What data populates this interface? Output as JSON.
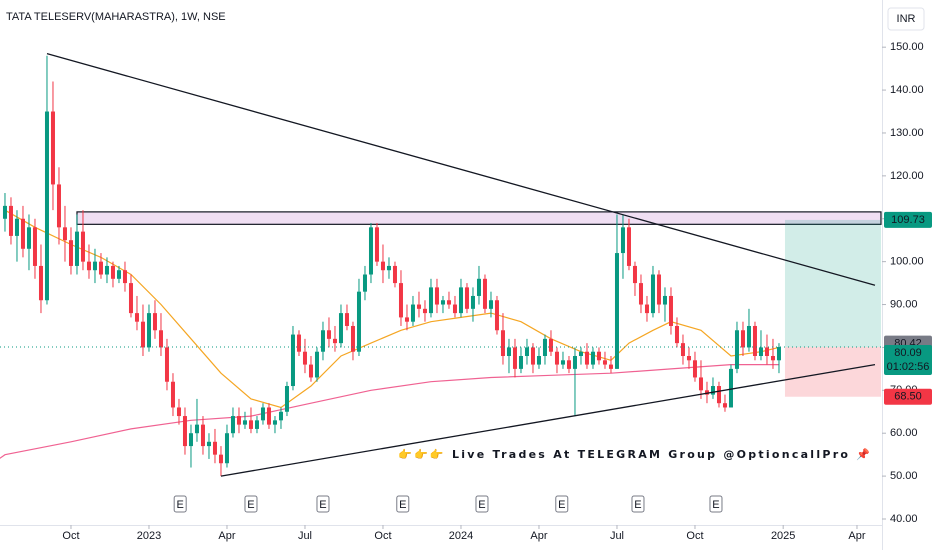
{
  "chart_data": {
    "type": "candlestick",
    "title": "TATA TELESERV(MAHARASTRA), 1W, NSE",
    "currency": "INR",
    "ylim": [
      38.6,
      161
    ],
    "yticks": [
      {
        "value": 40,
        "label": "40.00"
      },
      {
        "value": 50,
        "label": "50.00"
      },
      {
        "value": 60,
        "label": "60.00"
      },
      {
        "value": 70,
        "label": "70.00"
      },
      {
        "value": 80,
        "label": "80.00"
      },
      {
        "value": 90,
        "label": "90.00"
      },
      {
        "value": 100,
        "label": "100.00"
      },
      {
        "value": 110,
        "label": "110.00"
      },
      {
        "value": 120,
        "label": "120.00"
      },
      {
        "value": 130,
        "label": "130.00"
      },
      {
        "value": 140,
        "label": "140.00"
      },
      {
        "value": 150,
        "label": "150.00"
      }
    ],
    "xlim": [
      -11.83,
      135.17
    ],
    "xticks": [
      {
        "value": 0,
        "label": "Oct"
      },
      {
        "value": 13,
        "label": "2023"
      },
      {
        "value": 26,
        "label": "Apr"
      },
      {
        "value": 39,
        "label": "Jul"
      },
      {
        "value": 52,
        "label": "Oct"
      },
      {
        "value": 65,
        "label": "2024"
      },
      {
        "value": 78,
        "label": "Apr"
      },
      {
        "value": 91,
        "label": "Jul"
      },
      {
        "value": 104,
        "label": "Oct"
      },
      {
        "value": 118.7,
        "label": "2025"
      },
      {
        "value": 131,
        "label": "Apr"
      }
    ],
    "up_color": "#089981",
    "down_color": "#f23645",
    "candles": {
      "x": [
        -11,
        -10,
        -9,
        -8,
        -7,
        -6,
        -5,
        -4,
        -3,
        -2,
        -1,
        0,
        1,
        2,
        3,
        4,
        5,
        6,
        7,
        8,
        9,
        10,
        11,
        12,
        13,
        14,
        15,
        16,
        17,
        18,
        19,
        20,
        21,
        22,
        23,
        24,
        25,
        26,
        27,
        28,
        29,
        30,
        31,
        32,
        33,
        34,
        35,
        36,
        37,
        38,
        39,
        40,
        41,
        42,
        43,
        44,
        45,
        46,
        47,
        48,
        49,
        50,
        51,
        52,
        53,
        54,
        55,
        56,
        57,
        58,
        59,
        60,
        61,
        62,
        63,
        64,
        65,
        66,
        67,
        68,
        69,
        70,
        71,
        72,
        73,
        74,
        75,
        76,
        77,
        78,
        79,
        80,
        81,
        82,
        83,
        84,
        85,
        86,
        87,
        88,
        89,
        90,
        91,
        92,
        93,
        94,
        95,
        96,
        97,
        98,
        99,
        100,
        101,
        102,
        103,
        104,
        105,
        106,
        107,
        108,
        109,
        110,
        111,
        112,
        113,
        114,
        115,
        116,
        117,
        118
      ],
      "open": [
        110,
        113,
        106,
        110,
        103,
        108,
        99,
        91,
        135,
        118,
        108,
        105,
        99,
        107,
        100,
        98,
        100,
        97,
        99,
        96,
        98,
        95,
        88,
        86,
        80,
        88,
        84,
        80,
        72,
        66,
        64,
        57,
        60,
        62,
        57,
        58,
        55,
        53,
        60,
        64,
        62,
        63,
        61,
        63,
        66,
        62,
        63,
        65,
        71,
        83,
        79,
        76,
        73,
        79,
        84,
        82,
        81,
        88,
        85,
        79,
        93,
        97,
        108,
        100,
        98,
        99,
        95,
        87,
        86,
        90,
        89,
        88,
        94,
        90,
        91,
        90,
        88,
        94,
        89,
        92,
        96,
        89,
        91,
        84,
        78,
        80,
        75,
        78,
        80,
        76,
        78,
        82,
        79,
        76,
        77,
        75,
        78,
        79,
        76,
        79,
        77,
        76,
        75,
        102,
        108,
        99,
        95,
        90,
        88,
        97,
        90,
        92,
        85,
        81,
        78,
        77,
        73,
        70,
        69,
        71,
        67,
        66,
        75,
        84,
        80,
        85,
        78,
        80,
        78,
        77
      ],
      "high": [
        116,
        115,
        112,
        113,
        111,
        110,
        104,
        148,
        142,
        122,
        113,
        108,
        111,
        112,
        104,
        103,
        102,
        101,
        100,
        99,
        100,
        97,
        92,
        90,
        90,
        91,
        88,
        82,
        74,
        68,
        66,
        62,
        68,
        64,
        60,
        61,
        57,
        62,
        66,
        66,
        65,
        66,
        64,
        67,
        67,
        64,
        66,
        72,
        85,
        84,
        82,
        78,
        80,
        86,
        87,
        85,
        90,
        90,
        86,
        96,
        99,
        109,
        109,
        104,
        101,
        100,
        98,
        90,
        92,
        93,
        91,
        96,
        96,
        92,
        93,
        92,
        96,
        95,
        94,
        99,
        97,
        93,
        92,
        88,
        82,
        82,
        80,
        82,
        81,
        80,
        83,
        84,
        80,
        79,
        78,
        80,
        80,
        81,
        80,
        80,
        79,
        78,
        111,
        111,
        110,
        100,
        97,
        92,
        99,
        98,
        94,
        94,
        87,
        83,
        80,
        79,
        77,
        72,
        73,
        72,
        69,
        76,
        86,
        86,
        89,
        86,
        84,
        83,
        82,
        81
      ],
      "low": [
        107,
        104,
        100,
        101,
        98,
        96,
        88,
        90,
        112,
        104,
        100,
        97,
        97,
        98,
        96,
        95,
        96,
        95,
        94,
        95,
        93,
        87,
        84,
        78,
        79,
        82,
        78,
        70,
        64,
        62,
        55,
        52,
        58,
        55,
        54,
        53,
        50,
        52,
        59,
        60,
        61,
        60,
        60,
        62,
        61,
        60,
        61,
        64,
        70,
        78,
        74,
        72,
        72,
        77,
        80,
        79,
        80,
        84,
        77,
        78,
        91,
        95,
        99,
        95,
        96,
        94,
        85,
        84,
        85,
        87,
        86,
        87,
        88,
        88,
        89,
        87,
        87,
        88,
        86,
        90,
        88,
        87,
        83,
        76,
        74,
        73,
        74,
        76,
        74,
        75,
        76,
        78,
        74,
        75,
        74,
        64,
        76,
        75,
        75,
        76,
        75,
        74,
        75,
        96,
        98,
        92,
        88,
        86,
        87,
        88,
        86,
        83,
        80,
        76,
        75,
        72,
        68,
        67,
        68,
        66,
        65,
        66,
        74,
        78,
        79,
        77,
        77,
        76,
        75,
        74
      ],
      "close": [
        113,
        106,
        110,
        103,
        108,
        99,
        91,
        135,
        118,
        108,
        105,
        99,
        107,
        100,
        98,
        100,
        97,
        99,
        96,
        98,
        95,
        88,
        86,
        80,
        88,
        84,
        80,
        72,
        66,
        64,
        57,
        60,
        62,
        57,
        58,
        55,
        53,
        60,
        64,
        62,
        63,
        61,
        63,
        66,
        62,
        63,
        65,
        71,
        83,
        79,
        76,
        73,
        79,
        84,
        82,
        81,
        88,
        85,
        79,
        93,
        97,
        108,
        100,
        98,
        99,
        95,
        87,
        86,
        90,
        89,
        88,
        94,
        90,
        91,
        90,
        88,
        94,
        89,
        92,
        96,
        89,
        91,
        84,
        78,
        80,
        75,
        78,
        80,
        76,
        78,
        82,
        79,
        76,
        77,
        75,
        78,
        79,
        76,
        79,
        77,
        76,
        75,
        102,
        108,
        99,
        95,
        90,
        88,
        97,
        90,
        92,
        85,
        81,
        78,
        77,
        73,
        70,
        69,
        71,
        67,
        66,
        75,
        84,
        80,
        85,
        78,
        80,
        78,
        77,
        80.09
      ]
    },
    "series": [
      {
        "name": "EMA",
        "color": "#f5a623",
        "x": [
          -11,
          -6,
          0,
          5,
          10,
          15,
          20,
          25,
          30,
          35,
          40,
          45,
          50,
          55,
          60,
          65,
          70,
          75,
          80,
          85,
          90,
          93,
          97,
          100,
          105,
          110,
          115,
          118
        ],
        "values": [
          112,
          108,
          104,
          101,
          97,
          90,
          82,
          74,
          68,
          66,
          71,
          78,
          81,
          84,
          86,
          87,
          88,
          86,
          82,
          79,
          77,
          81,
          84,
          86,
          84,
          78,
          79,
          80
        ]
      },
      {
        "name": "SMA",
        "color": "#f06292",
        "x": [
          -12,
          -11,
          0,
          10,
          20,
          30,
          40,
          50,
          60,
          70,
          80,
          90,
          100,
          110,
          118
        ],
        "values": [
          54,
          55,
          58,
          61,
          63,
          64,
          67,
          70,
          72,
          73,
          73.5,
          74,
          75,
          76,
          76
        ]
      }
    ],
    "trendlines": [
      {
        "x": [
          -4,
          134
        ],
        "values": [
          148.5,
          94.5
        ]
      },
      {
        "x": [
          25,
          134
        ],
        "values": [
          50,
          76
        ]
      }
    ],
    "zone": {
      "x": [
        1,
        135
      ],
      "values": [
        108.7,
        111.6
      ]
    },
    "position": {
      "x": [
        119,
        135
      ],
      "entry": 80.09,
      "target": 109.73,
      "stop": 68.5
    },
    "price_labels": [
      {
        "value": 109.73,
        "label": "109.73",
        "color": "#089981"
      },
      {
        "value": 80.42,
        "label": "80.42",
        "color": "#787b86"
      },
      {
        "value": 80.09,
        "label": "80.09",
        "color": "#089981"
      },
      {
        "value": 68.5,
        "label": "68.50",
        "color": "#f23645"
      }
    ],
    "countdown": "01:02:56",
    "events": [
      {
        "x": 18.2,
        "label": "E"
      },
      {
        "x": 30,
        "label": "E"
      },
      {
        "x": 42,
        "label": "E"
      },
      {
        "x": 55.3,
        "label": "E"
      },
      {
        "x": 68.5,
        "label": "E"
      },
      {
        "x": 81.8,
        "label": "E"
      },
      {
        "x": 94.5,
        "label": "E"
      },
      {
        "x": 107.5,
        "label": "E"
      }
    ],
    "annotation": "👉👉👉 Live Trades At TELEGRAM Group @OptioncallPro 📌"
  }
}
